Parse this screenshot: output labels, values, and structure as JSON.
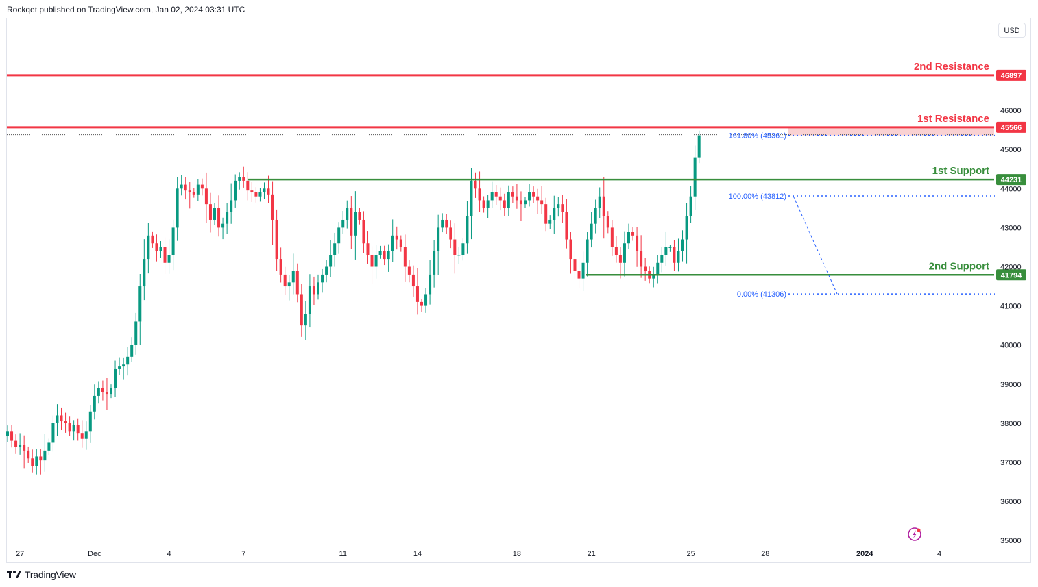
{
  "header": {
    "publisher_line": "Rockqet published on TradingView.com, Jan 02, 2024 03:31 UTC"
  },
  "currency": "USD",
  "footer": {
    "brand": "TradingView"
  },
  "colors": {
    "up": "#089981",
    "down": "#f23645",
    "resistance": "#f23645",
    "support": "#388e3c",
    "fib": "#2962ff",
    "zone": "#f7c1c3"
  },
  "chart_data": {
    "type": "candlestick",
    "symbol_currency": "USD",
    "ylim": [
      34800,
      47900
    ],
    "y_ticks": [
      35000,
      36000,
      37000,
      38000,
      39000,
      40000,
      41000,
      42000,
      43000,
      44000,
      45000,
      46000
    ],
    "x_ticks": [
      {
        "label": "27",
        "bar": 3
      },
      {
        "label": "Dec",
        "bar": 21
      },
      {
        "label": "4",
        "bar": 39
      },
      {
        "label": "7",
        "bar": 57
      },
      {
        "label": "11",
        "bar": 81
      },
      {
        "label": "14",
        "bar": 99
      },
      {
        "label": "18",
        "bar": 123
      },
      {
        "label": "21",
        "bar": 141
      },
      {
        "label": "25",
        "bar": 165
      },
      {
        "label": "28",
        "bar": 183
      },
      {
        "label": "2024",
        "bar": 207
      },
      {
        "label": "4",
        "bar": 225
      }
    ],
    "levels": [
      {
        "name": "2nd Resistance",
        "label": "46897",
        "value": 46897,
        "kind": "resistance"
      },
      {
        "name": "1st Resistance",
        "label": "45566",
        "value": 45566,
        "kind": "resistance"
      },
      {
        "name": "1st Support",
        "label": "44231",
        "value": 44231,
        "kind": "support"
      },
      {
        "name": "2nd Support",
        "label": "41794",
        "value": 41794,
        "kind": "support"
      }
    ],
    "fib": [
      {
        "label": "161.80% (45361)",
        "value": 45361
      },
      {
        "label": "100.00% (43812)",
        "value": 43812
      },
      {
        "label": "0.00% (41306)",
        "value": 41306
      }
    ],
    "closes": [
      37800,
      37550,
      37400,
      37450,
      37300,
      37100,
      36900,
      37150,
      37050,
      37300,
      37500,
      38000,
      38200,
      38050,
      38000,
      37800,
      37950,
      37750,
      37600,
      37800,
      38300,
      38700,
      38900,
      38800,
      38750,
      38900,
      39400,
      39450,
      39500,
      39700,
      40000,
      40600,
      41500,
      42200,
      42800,
      42600,
      42400,
      42500,
      42100,
      42300,
      43000,
      44000,
      44100,
      43950,
      43900,
      43850,
      44100,
      44000,
      43600,
      43200,
      43500,
      43000,
      43100,
      43400,
      43700,
      44200,
      44300,
      44200,
      43950,
      43900,
      43800,
      43900,
      44000,
      43850,
      43200,
      42200,
      41800,
      41500,
      41600,
      41900,
      41300,
      40500,
      40800,
      41500,
      41300,
      41600,
      41800,
      42000,
      42300,
      42600,
      43000,
      43200,
      43500,
      42800,
      43400,
      43200,
      42600,
      42300,
      42000,
      42300,
      42400,
      42200,
      42400,
      42800,
      42700,
      42500,
      42000,
      41800,
      41500,
      41100,
      41000,
      41300,
      41800,
      42400,
      43000,
      43200,
      43000,
      42700,
      42300,
      42300,
      42600,
      43300,
      44200,
      44000,
      43700,
      43500,
      43700,
      43900,
      43800,
      43700,
      43500,
      43900,
      43800,
      43700,
      43600,
      43700,
      43900,
      43800,
      43700,
      43600,
      43100,
      43200,
      43500,
      43600,
      43400,
      42700,
      42200,
      41900,
      41700,
      42100,
      42700,
      43100,
      43500,
      43800,
      43300,
      43000,
      42500,
      42300,
      42100,
      42600,
      42900,
      42800,
      42400,
      42000,
      41900,
      41700,
      41800,
      42100,
      42300,
      42500,
      42500,
      42100,
      42400,
      42700,
      43300,
      43800,
      44800,
      45361
    ],
    "fib_connector": [
      {
        "from": "100.00% (43812)",
        "bar": 190
      },
      {
        "to": "0.00% (41306)",
        "bar": 206
      }
    ]
  },
  "watermark_icon": "lightning-icon"
}
